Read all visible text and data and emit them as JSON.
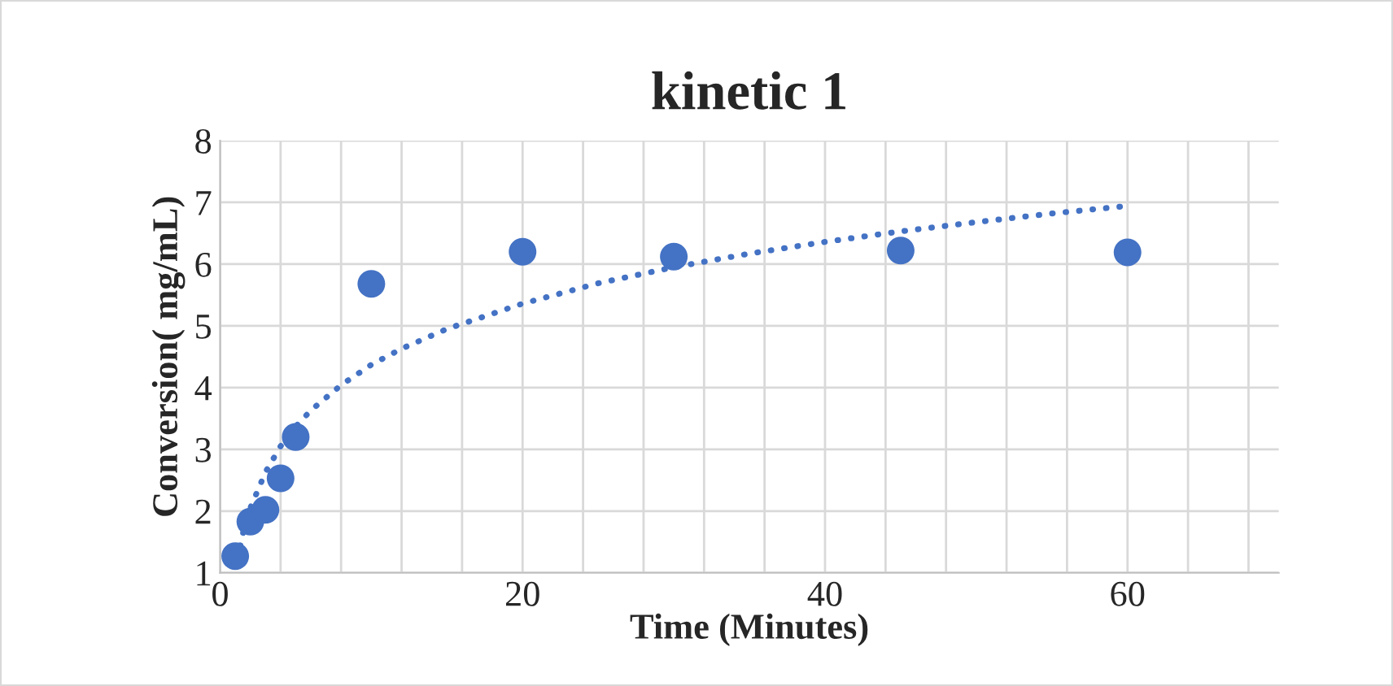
{
  "chart_data": {
    "type": "scatter",
    "title": "kinetic 1",
    "xlabel": "Time (Minutes)",
    "ylabel": "Conversion( mg/mL)",
    "xlim": [
      0,
      70
    ],
    "xticks": [
      0,
      {
        "value": 4,
        "label": null
      },
      {
        "value": 8,
        "label": null
      },
      {
        "value": 12,
        "label": null
      },
      {
        "value": 16,
        "label": null
      },
      20,
      {
        "value": 24,
        "label": null
      },
      {
        "value": 28,
        "label": null
      },
      {
        "value": 32,
        "label": null
      },
      {
        "value": 36,
        "label": null
      },
      40,
      {
        "value": 44,
        "label": null
      },
      {
        "value": 48,
        "label": null
      },
      {
        "value": 52,
        "label": null
      },
      {
        "value": 56,
        "label": null
      },
      60,
      {
        "value": 64,
        "label": null
      },
      {
        "value": 68,
        "label": null
      }
    ],
    "ylim": [
      1,
      8
    ],
    "yticks": [
      1,
      2,
      3,
      4,
      5,
      6,
      7,
      8
    ],
    "grid": true,
    "marker": "circle",
    "series": [
      {
        "color": "#4472c4",
        "x": [
          1,
          2,
          3,
          4,
          5,
          10,
          20,
          30,
          45,
          60
        ],
        "values": [
          1.27,
          1.83,
          2.02,
          2.53,
          3.2,
          5.68,
          6.2,
          6.12,
          6.22,
          6.19
        ]
      },
      {
        "type": "line",
        "color": "#4472c4",
        "line_style": "dotted",
        "marker": "none",
        "x": [
          1,
          1.5,
          2,
          3,
          4,
          5,
          6,
          8,
          10,
          12,
          15,
          20,
          25,
          30,
          35,
          40,
          45,
          50,
          55,
          59.5
        ],
        "values": [
          1.05,
          1.63,
          2.05,
          2.63,
          3.05,
          3.37,
          3.63,
          4.04,
          4.37,
          4.63,
          4.95,
          5.36,
          5.69,
          5.95,
          6.17,
          6.36,
          6.53,
          6.68,
          6.82,
          6.93
        ]
      }
    ]
  }
}
